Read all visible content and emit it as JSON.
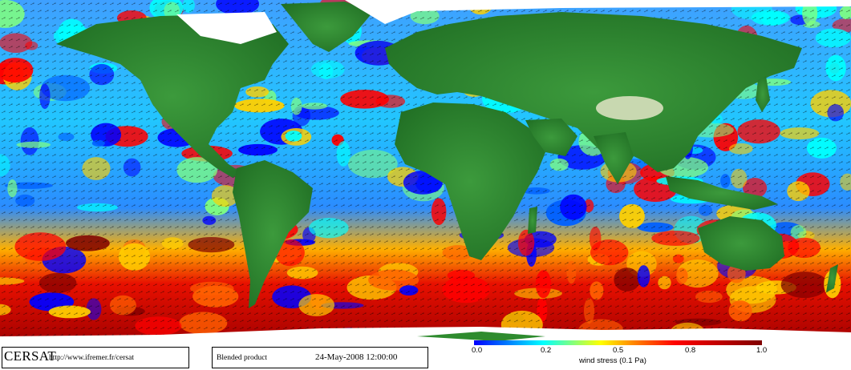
{
  "map": {
    "caption_brand": "CERSAT",
    "caption_url": "http://www.ifremer.fr/cersat",
    "product": "Blended product",
    "datetime": "24-May-2008 12:00:00",
    "colorbar": {
      "ticks": [
        "0.0",
        "0.2",
        "0.5",
        "0.8",
        "1.0"
      ],
      "label": "wind stress (0.1 Pa)",
      "range": [
        0.0,
        1.0
      ]
    },
    "colors": {
      "land": "#2e8b2e",
      "land_dark": "#1f6e22",
      "ice": "#ffffff",
      "low": "#0000ff",
      "mid": "#00ffff",
      "high": "#ff0000",
      "max": "#800000"
    },
    "legend_position": "bottom-right"
  }
}
